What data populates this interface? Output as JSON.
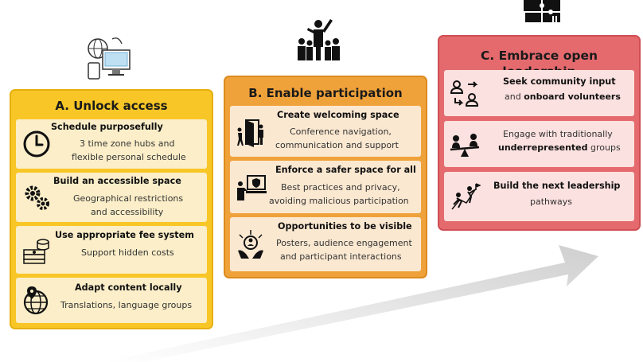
{
  "columns": {
    "a": {
      "title": "A. Unlock access",
      "icon": "globe-computer-icon",
      "color": "#f8c626",
      "cards": [
        {
          "heading": "Schedule purposefully",
          "desc1": "3 time zone hubs and",
          "desc2": "flexible personal schedule",
          "icon": "clock-icon"
        },
        {
          "heading": "Build an accessible space",
          "desc1": "Geographical restrictions",
          "desc2": "and accessibility",
          "icon": "gears-icon"
        },
        {
          "heading": "Use appropriate fee system",
          "desc1": "Support hidden costs",
          "icon": "money-icon"
        },
        {
          "heading": "Adapt content locally",
          "desc1": "Translations, language groups",
          "icon": "globe-pin-icon"
        }
      ]
    },
    "b": {
      "title": "B. Enable participation",
      "icon": "crowd-icon",
      "color": "#f0a23a",
      "cards": [
        {
          "heading": "Create welcoming space",
          "desc1": "Conference navigation,",
          "desc2": "communication and support",
          "icon": "door-welcome-icon"
        },
        {
          "heading": "Enforce a safer space for all",
          "desc1": "Best practices and privacy,",
          "desc2": "avoiding malicious participation",
          "icon": "shield-screen-icon"
        },
        {
          "heading": "Opportunities to be visible",
          "desc1": "Posters, audience engagement",
          "desc2": "and participant interactions",
          "icon": "hands-person-icon"
        }
      ]
    },
    "c": {
      "title": "C. Embrace open leadership",
      "icon": "puzzle-icon",
      "color": "#e46a6e",
      "cards": [
        {
          "heading": "Seek community input",
          "desc_pre": "and ",
          "desc_bold": "onboard volunteers",
          "icon": "people-exchange-icon"
        },
        {
          "heading_plain": "Engage with traditionally",
          "desc_bold": "underrepresented",
          "desc_post": " groups",
          "icon": "seesaw-icon"
        },
        {
          "heading": "Build the next leadership",
          "desc1": "pathways",
          "icon": "climbing-icon"
        }
      ]
    }
  },
  "arrow": {
    "color": "#d5d5d5"
  }
}
